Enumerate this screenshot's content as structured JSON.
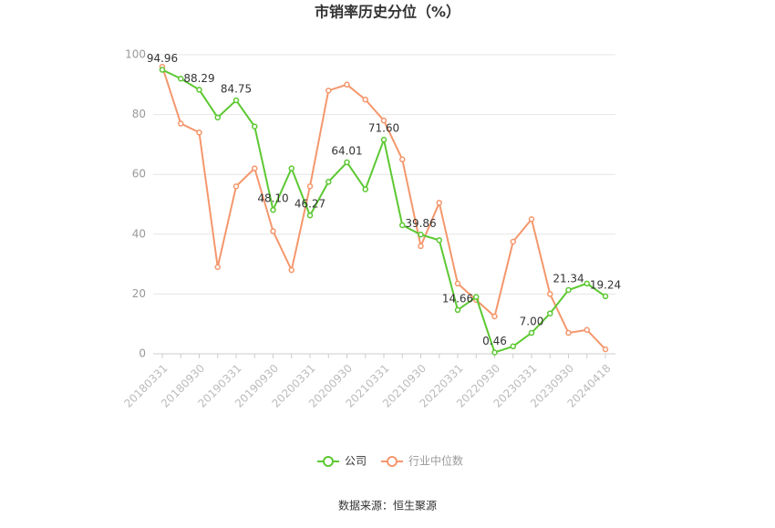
{
  "chart_data": {
    "type": "line",
    "title": "市销率历史分位（%）",
    "source": "数据来源：恒生聚源",
    "categories": [
      "20180331",
      null,
      "20180930",
      null,
      "20190331",
      null,
      "20190930",
      null,
      "20200331",
      null,
      "20200930",
      null,
      "20210331",
      null,
      "20210930",
      null,
      "20220331",
      null,
      "20220930",
      null,
      "20230331",
      null,
      "20230930",
      null,
      "20240418"
    ],
    "series": [
      {
        "name": "公司",
        "color": "#5cc832",
        "values": [
          94.96,
          92,
          88.29,
          79,
          84.75,
          76,
          48.1,
          62,
          46.27,
          57.5,
          64.01,
          55,
          71.6,
          43,
          39.86,
          38,
          14.66,
          19,
          0.46,
          2.5,
          7.0,
          13.5,
          21.34,
          23.5,
          19.24
        ],
        "value_labels": [
          "94.96",
          null,
          "88.29",
          null,
          "84.75",
          null,
          "48.10",
          null,
          "46.27",
          null,
          "64.01",
          null,
          "71.60",
          null,
          "39.86",
          null,
          "14.66",
          null,
          "0.46",
          null,
          "7.00",
          null,
          "21.34",
          null,
          "19.24"
        ]
      },
      {
        "name": "行业中位数",
        "color": "#f4976c",
        "values": [
          96,
          77,
          74,
          29,
          56,
          62,
          41,
          28,
          56,
          88,
          90,
          85,
          78,
          65,
          36,
          50.5,
          23.5,
          18,
          12.5,
          37.5,
          45,
          20,
          7,
          8,
          1.5
        ]
      }
    ],
    "ylim": [
      0,
      100
    ],
    "yticks": [
      0,
      20,
      40,
      60,
      80,
      100
    ],
    "grid": true
  }
}
